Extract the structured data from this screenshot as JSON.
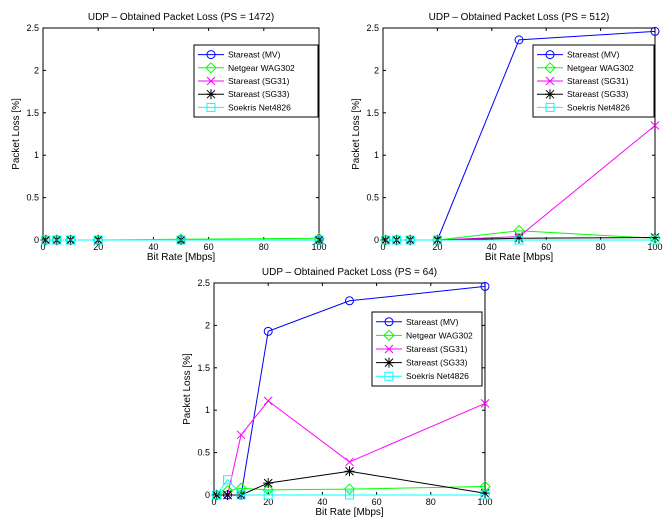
{
  "chart_data": [
    {
      "type": "line",
      "title": "UDP – Obtained Packet Loss (PS = 1472)",
      "xlabel": "Bit Rate [Mbps]",
      "ylabel": "Packet Loss [%]",
      "xlim": [
        0,
        100
      ],
      "ylim": [
        0,
        2.5
      ],
      "xticks": [
        "0",
        "20",
        "40",
        "60",
        "80",
        "100"
      ],
      "yticks": [
        "0",
        "0.5",
        "1",
        "1.5",
        "2",
        "2.5"
      ],
      "legend_position": "top-right",
      "series": [
        {
          "name": "Stareast (MV)",
          "color": "#0000ff",
          "marker": "circle",
          "x": [
            1,
            5,
            10,
            20,
            50,
            100
          ],
          "y": [
            0,
            0,
            0,
            0,
            0,
            0
          ]
        },
        {
          "name": "Netgear WAG302",
          "color": "#00ff00",
          "marker": "diamond",
          "x": [
            1,
            5,
            10,
            20,
            50,
            100
          ],
          "y": [
            0,
            0,
            0,
            0,
            0.01,
            0.02
          ]
        },
        {
          "name": "Stareast (SG31)",
          "color": "#ff00ff",
          "marker": "x",
          "x": [
            1,
            5,
            10,
            20,
            50,
            100
          ],
          "y": [
            0,
            0,
            0,
            0,
            0,
            0
          ]
        },
        {
          "name": "Stareast (SG33)",
          "color": "#000000",
          "marker": "star",
          "x": [
            1,
            5,
            10,
            20,
            50,
            100
          ],
          "y": [
            0,
            0,
            0,
            0,
            0,
            0
          ]
        },
        {
          "name": "Soekris Net4826",
          "color": "#00ffff",
          "marker": "square",
          "x": [
            1,
            5,
            10,
            20,
            50,
            100
          ],
          "y": [
            0,
            0,
            0,
            0,
            0,
            0
          ]
        }
      ]
    },
    {
      "type": "line",
      "title": "UDP – Obtained Packet Loss (PS = 512)",
      "xlabel": "Bit Rate [Mbps]",
      "ylabel": "Packet Loss [%]",
      "xlim": [
        0,
        100
      ],
      "ylim": [
        0,
        2.5
      ],
      "xticks": [
        "0",
        "20",
        "40",
        "60",
        "80",
        "100"
      ],
      "yticks": [
        "0",
        "0.5",
        "1",
        "1.5",
        "2",
        "2.5"
      ],
      "legend_position": "top-right",
      "series": [
        {
          "name": "Stareast (MV)",
          "color": "#0000ff",
          "marker": "circle",
          "x": [
            1,
            5,
            10,
            20,
            50,
            100
          ],
          "y": [
            0,
            0,
            0,
            0,
            2.36,
            2.46
          ]
        },
        {
          "name": "Netgear WAG302",
          "color": "#00ff00",
          "marker": "diamond",
          "x": [
            1,
            5,
            10,
            20,
            50,
            100
          ],
          "y": [
            0,
            0,
            0,
            0,
            0.11,
            0.02
          ]
        },
        {
          "name": "Stareast (SG31)",
          "color": "#ff00ff",
          "marker": "x",
          "x": [
            1,
            5,
            10,
            20,
            50,
            100
          ],
          "y": [
            0,
            0,
            0,
            0,
            0.04,
            1.35
          ]
        },
        {
          "name": "Stareast (SG33)",
          "color": "#000000",
          "marker": "star",
          "x": [
            1,
            5,
            10,
            20,
            50,
            100
          ],
          "y": [
            0,
            0,
            0,
            0,
            0.02,
            0.03
          ]
        },
        {
          "name": "Soekris Net4826",
          "color": "#00ffff",
          "marker": "square",
          "x": [
            1,
            5,
            10,
            20,
            50,
            100
          ],
          "y": [
            0,
            0,
            0,
            0,
            0,
            0
          ]
        }
      ]
    },
    {
      "type": "line",
      "title": "UDP – Obtained Packet Loss (PS = 64)",
      "xlabel": "Bit Rate [Mbps]",
      "ylabel": "Packet Loss [%]",
      "xlim": [
        0,
        100
      ],
      "ylim": [
        0,
        2.5
      ],
      "xticks": [
        "0",
        "20",
        "40",
        "60",
        "80",
        "100"
      ],
      "yticks": [
        "0",
        "0.5",
        "1",
        "1.5",
        "2",
        "2.5"
      ],
      "legend_position": "right",
      "series": [
        {
          "name": "Stareast (MV)",
          "color": "#0000ff",
          "marker": "circle",
          "x": [
            1,
            5,
            10,
            20,
            50,
            100
          ],
          "y": [
            0,
            0,
            0,
            1.93,
            2.29,
            2.46
          ]
        },
        {
          "name": "Netgear WAG302",
          "color": "#00ff00",
          "marker": "diamond",
          "x": [
            1,
            5,
            10,
            20,
            50,
            100
          ],
          "y": [
            0,
            0.05,
            0.08,
            0.06,
            0.07,
            0.1
          ]
        },
        {
          "name": "Stareast (SG31)",
          "color": "#ff00ff",
          "marker": "x",
          "x": [
            1,
            5,
            10,
            20,
            50,
            100
          ],
          "y": [
            0,
            0,
            0.71,
            1.11,
            0.39,
            1.08
          ]
        },
        {
          "name": "Stareast (SG33)",
          "color": "#000000",
          "marker": "star",
          "x": [
            1,
            5,
            10,
            20,
            50,
            100
          ],
          "y": [
            0,
            0,
            0,
            0.14,
            0.28,
            0.02
          ]
        },
        {
          "name": "Soekris Net4826",
          "color": "#00ffff",
          "marker": "square",
          "x": [
            1,
            5,
            10,
            20,
            50,
            100
          ],
          "y": [
            0,
            0.18,
            0,
            0,
            0,
            0
          ]
        }
      ]
    }
  ]
}
